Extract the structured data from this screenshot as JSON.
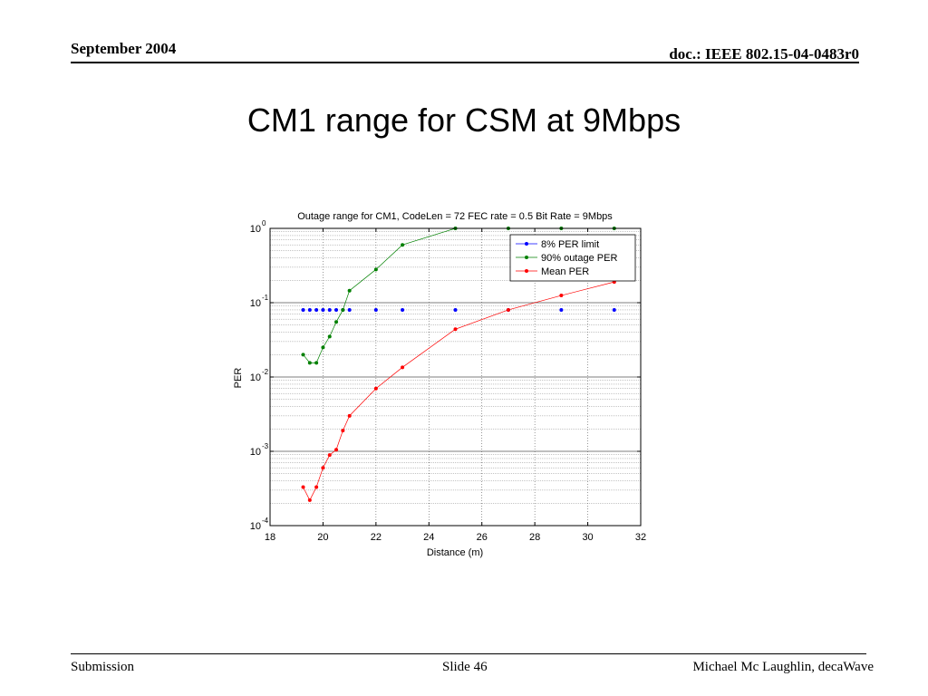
{
  "header": {
    "date": "September 2004",
    "doc_id": "doc.: IEEE 802.15-04-0483r0"
  },
  "slide": {
    "title": "CM1 range for CSM at 9Mbps"
  },
  "footer": {
    "left": "Submission",
    "center": "Slide 46",
    "right": "Michael Mc Laughlin, decaWave"
  },
  "chart_data": {
    "type": "line",
    "title": "Outage range for CM1, CodeLen = 72 FEC rate = 0.5 Bit Rate = 9Mbps",
    "xlabel": "Distance (m)",
    "ylabel": "PER",
    "xlim": [
      18,
      32
    ],
    "ylim": [
      0.0001,
      1
    ],
    "yscale": "log",
    "grid": true,
    "legend_position": "top-right",
    "x_ticks": [
      "18",
      "20",
      "22",
      "24",
      "26",
      "28",
      "30",
      "32"
    ],
    "y_ticks": [
      {
        "base": "10",
        "exp": "0"
      },
      {
        "base": "10",
        "exp": "-1"
      },
      {
        "base": "10",
        "exp": "-2"
      },
      {
        "base": "10",
        "exp": "-3"
      },
      {
        "base": "10",
        "exp": "-4"
      }
    ],
    "series": [
      {
        "name": "8% PER limit",
        "color": "#0000ff",
        "line": false,
        "x": [
          19.25,
          19.5,
          19.75,
          20,
          20.25,
          20.5,
          20.75,
          21,
          22,
          23,
          25,
          27,
          29,
          31
        ],
        "y": [
          0.08,
          0.08,
          0.08,
          0.08,
          0.08,
          0.08,
          0.08,
          0.08,
          0.08,
          0.08,
          0.08,
          0.08,
          0.08,
          0.08
        ]
      },
      {
        "name": "90% outage PER",
        "color": "#008000",
        "line": true,
        "x": [
          19.25,
          19.5,
          19.75,
          20,
          20.25,
          20.5,
          20.75,
          21,
          22,
          23,
          25,
          27,
          29,
          31
        ],
        "y": [
          0.02,
          0.0155,
          0.0155,
          0.025,
          0.035,
          0.055,
          0.08,
          0.145,
          0.28,
          0.6,
          1,
          1,
          1,
          1
        ]
      },
      {
        "name": "Mean PER",
        "color": "#ff0000",
        "line": true,
        "x": [
          19.25,
          19.5,
          19.75,
          20,
          20.25,
          20.5,
          20.75,
          21,
          22,
          23,
          25,
          27,
          29,
          31
        ],
        "y": [
          0.00033,
          0.00022,
          0.00033,
          0.0006,
          0.00089,
          0.00105,
          0.0019,
          0.003,
          0.007,
          0.0135,
          0.044,
          0.08,
          0.125,
          0.19
        ]
      }
    ]
  }
}
